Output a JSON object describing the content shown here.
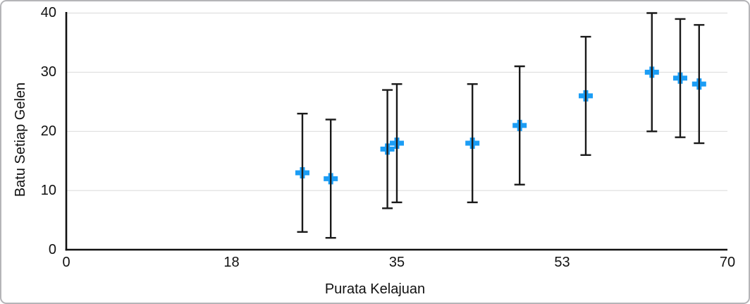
{
  "frame": {
    "background_color": "#ffffff",
    "border_color": "#b5b5b8"
  },
  "chart_data": {
    "type": "scatter",
    "title": "",
    "xlabel": "Purata Kelajuan",
    "ylabel": "Batu Setiap Gelen",
    "xlim": [
      0,
      70
    ],
    "ylim": [
      0,
      40
    ],
    "grid": "horizontal",
    "gridline_color": "#d9d9d9",
    "axis_color": "#111111",
    "text_color": "#111111",
    "x_ticks": [
      {
        "value": 0,
        "label": "0"
      },
      {
        "value": 17.5,
        "label": "18"
      },
      {
        "value": 35,
        "label": "35"
      },
      {
        "value": 52.5,
        "label": "53"
      },
      {
        "value": 70,
        "label": "70"
      }
    ],
    "y_ticks": [
      {
        "value": 0,
        "label": "0"
      },
      {
        "value": 10,
        "label": "10"
      },
      {
        "value": 20,
        "label": "20"
      },
      {
        "value": 30,
        "label": "30"
      },
      {
        "value": 40,
        "label": "40"
      }
    ],
    "series": [
      {
        "name": "Batu Setiap Gelen",
        "marker": "plus",
        "marker_color": "#1b9df5",
        "error_bars": {
          "direction": "vertical",
          "plus": 10,
          "minus": 10,
          "color": "#1a1a1a"
        },
        "points": [
          {
            "x": 25,
            "y": 13
          },
          {
            "x": 28,
            "y": 12
          },
          {
            "x": 34,
            "y": 17
          },
          {
            "x": 35,
            "y": 18
          },
          {
            "x": 43,
            "y": 18
          },
          {
            "x": 48,
            "y": 21
          },
          {
            "x": 55,
            "y": 26
          },
          {
            "x": 62,
            "y": 30
          },
          {
            "x": 65,
            "y": 29
          },
          {
            "x": 67,
            "y": 28
          }
        ]
      }
    ]
  }
}
